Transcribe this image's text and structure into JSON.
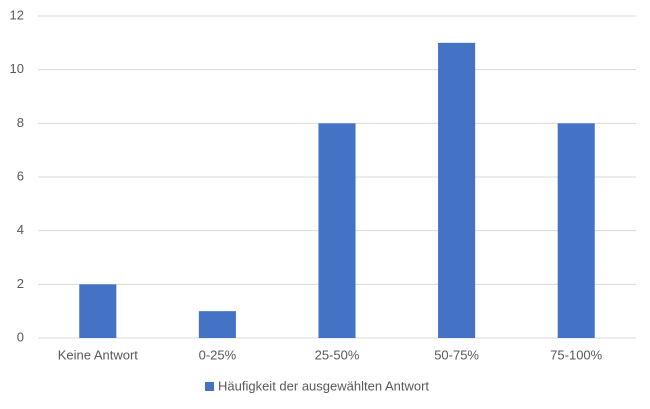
{
  "chart_data": {
    "type": "bar",
    "categories": [
      "Keine Antwort",
      "0-25%",
      "25-50%",
      "50-75%",
      "75-100%"
    ],
    "series": [
      {
        "name": "Häufigkeit der ausgewählten Antwort",
        "color": "#4472c4",
        "values": [
          2,
          1,
          8,
          11,
          8
        ]
      }
    ],
    "ylim": [
      0,
      12
    ],
    "yticks": [
      0,
      2,
      4,
      6,
      8,
      10,
      12
    ],
    "grid": true,
    "legend": "bottom"
  }
}
